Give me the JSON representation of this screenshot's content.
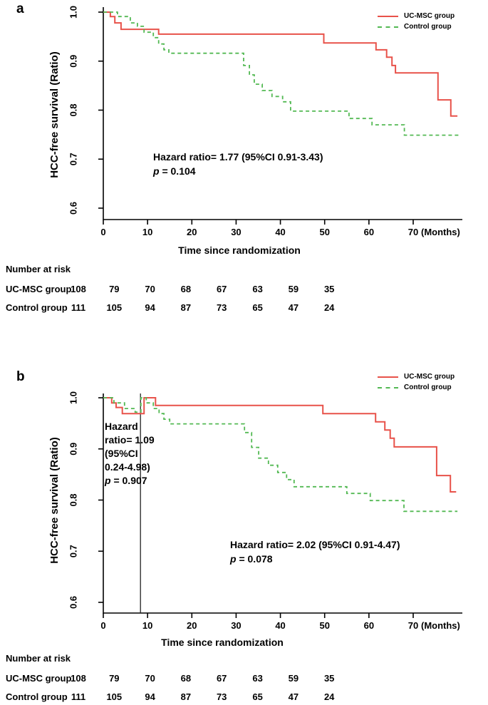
{
  "panels": [
    {
      "label": "a",
      "annotation": {
        "line1": "Hazard ratio= 1.77 (95%CI 0.91-3.43)",
        "p_italic": "p",
        "p_rest": " = 0.104"
      }
    },
    {
      "label": "b",
      "annotation_landmark": {
        "lines": [
          "Hazard",
          "ratio= 1.09",
          "(95%CI",
          "0.24-4.98)"
        ],
        "p_italic": "p",
        "p_rest": " = 0.907"
      },
      "annotation": {
        "line1": "Hazard ratio= 2.02 (95%CI 0.91-4.47)",
        "p_italic": "p",
        "p_rest": " = 0.078"
      }
    }
  ],
  "axes": {
    "y_label": "HCC-free survival (Ratio)",
    "x_label": "Time since randomization"
  },
  "risk_table": {
    "title": "Number at risk",
    "rows": [
      {
        "label": "UC-MSC group",
        "values": [
          "108",
          "79",
          "70",
          "68",
          "67",
          "63",
          "59",
          "35"
        ]
      },
      {
        "label": "Control group",
        "values": [
          "111",
          "105",
          "94",
          "87",
          "73",
          "65",
          "47",
          "24"
        ]
      }
    ]
  },
  "chart_data": [
    {
      "type": "line",
      "subtype": "kaplan-meier-step",
      "panel": "a",
      "xlabel": "Time since randomization",
      "ylabel": "HCC-free survival (Ratio)",
      "x_unit": "(Months)",
      "xlim": [
        0,
        81
      ],
      "ylim": [
        0.6,
        1.0
      ],
      "x_ticks": [
        {
          "v": 0,
          "label": "0"
        },
        {
          "v": 10,
          "label": "10"
        },
        {
          "v": 20,
          "label": "20"
        },
        {
          "v": 30,
          "label": "30"
        },
        {
          "v": 40,
          "label": "40"
        },
        {
          "v": 50,
          "label": "50"
        },
        {
          "v": 60,
          "label": "60"
        },
        {
          "v": 70,
          "label": "70"
        }
      ],
      "y_ticks": [
        {
          "v": 1.0,
          "label": "1.0"
        },
        {
          "v": 0.9,
          "label": "0.9"
        },
        {
          "v": 0.8,
          "label": "0.8"
        },
        {
          "v": 0.7,
          "label": "0.7"
        },
        {
          "v": 0.6,
          "label": "0.6"
        }
      ],
      "legend_position": "top-right",
      "series": [
        {
          "name": "UC-MSC group",
          "color": "#e8524a",
          "dash": "solid",
          "steps": [
            [
              0,
              1.0
            ],
            [
              1.6,
              0.991
            ],
            [
              2.6,
              0.978
            ],
            [
              4.0,
              0.965
            ],
            [
              12.5,
              0.955
            ],
            [
              49.8,
              0.937
            ],
            [
              61.6,
              0.923
            ],
            [
              64.0,
              0.908
            ],
            [
              65.2,
              0.891
            ],
            [
              66.0,
              0.876
            ],
            [
              75.6,
              0.821
            ],
            [
              78.5,
              0.788
            ],
            [
              80.0,
              0.788
            ]
          ]
        },
        {
          "name": "Control group",
          "color": "#53b953",
          "dash": "dashed",
          "steps": [
            [
              0,
              1.0
            ],
            [
              3.2,
              0.991
            ],
            [
              6.1,
              0.978
            ],
            [
              7.7,
              0.971
            ],
            [
              9.2,
              0.959
            ],
            [
              11.3,
              0.948
            ],
            [
              12.5,
              0.935
            ],
            [
              13.7,
              0.923
            ],
            [
              14.8,
              0.916
            ],
            [
              31.7,
              0.891
            ],
            [
              33.0,
              0.872
            ],
            [
              34.1,
              0.853
            ],
            [
              35.9,
              0.84
            ],
            [
              38.1,
              0.828
            ],
            [
              40.5,
              0.817
            ],
            [
              42.3,
              0.798
            ],
            [
              55.5,
              0.783
            ],
            [
              60.7,
              0.77
            ],
            [
              68.0,
              0.749
            ],
            [
              80.5,
              0.749
            ]
          ]
        }
      ]
    },
    {
      "type": "line",
      "subtype": "kaplan-meier-step",
      "panel": "b",
      "xlabel": "Time since randomization",
      "ylabel": "HCC-free survival (Ratio)",
      "x_unit": "(Months)",
      "xlim": [
        0,
        81
      ],
      "ylim": [
        0.6,
        1.0
      ],
      "landmark_month": 8.4,
      "x_ticks": [
        {
          "v": 0,
          "label": "0"
        },
        {
          "v": 10,
          "label": "10"
        },
        {
          "v": 20,
          "label": "20"
        },
        {
          "v": 30,
          "label": "30"
        },
        {
          "v": 40,
          "label": "40"
        },
        {
          "v": 50,
          "label": "50"
        },
        {
          "v": 60,
          "label": "60"
        },
        {
          "v": 70,
          "label": "70"
        }
      ],
      "y_ticks": [
        {
          "v": 1.0,
          "label": "1.0"
        },
        {
          "v": 0.9,
          "label": "0.9"
        },
        {
          "v": 0.8,
          "label": "0.8"
        },
        {
          "v": 0.7,
          "label": "0.7"
        },
        {
          "v": 0.6,
          "label": "0.6"
        }
      ],
      "legend_position": "top-right",
      "series": [
        {
          "name": "UC-MSC group",
          "color": "#e8524a",
          "dash": "solid",
          "steps": [
            [
              0,
              1.0
            ],
            [
              1.9,
              0.99
            ],
            [
              2.9,
              0.981
            ],
            [
              4.3,
              0.969
            ],
            [
              9.2,
              1.0
            ],
            [
              11.8,
              0.985
            ],
            [
              49.6,
              0.969
            ],
            [
              61.5,
              0.953
            ],
            [
              63.6,
              0.937
            ],
            [
              64.8,
              0.921
            ],
            [
              65.7,
              0.904
            ],
            [
              75.3,
              0.848
            ],
            [
              78.4,
              0.816
            ],
            [
              79.7,
              0.816
            ]
          ]
        },
        {
          "name": "Control group",
          "color": "#53b953",
          "dash": "dashed",
          "steps": [
            [
              0,
              1.0
            ],
            [
              2.4,
              0.99
            ],
            [
              4.8,
              0.979
            ],
            [
              7.2,
              0.972
            ],
            [
              8.5,
              1.0
            ],
            [
              9.7,
              0.99
            ],
            [
              11.3,
              0.979
            ],
            [
              12.6,
              0.969
            ],
            [
              13.7,
              0.958
            ],
            [
              15.0,
              0.949
            ],
            [
              31.9,
              0.932
            ],
            [
              33.5,
              0.903
            ],
            [
              35.1,
              0.882
            ],
            [
              37.3,
              0.868
            ],
            [
              39.4,
              0.854
            ],
            [
              41.4,
              0.84
            ],
            [
              43.1,
              0.826
            ],
            [
              55.0,
              0.813
            ],
            [
              60.3,
              0.799
            ],
            [
              67.9,
              0.778
            ],
            [
              80.0,
              0.778
            ]
          ]
        }
      ]
    }
  ]
}
